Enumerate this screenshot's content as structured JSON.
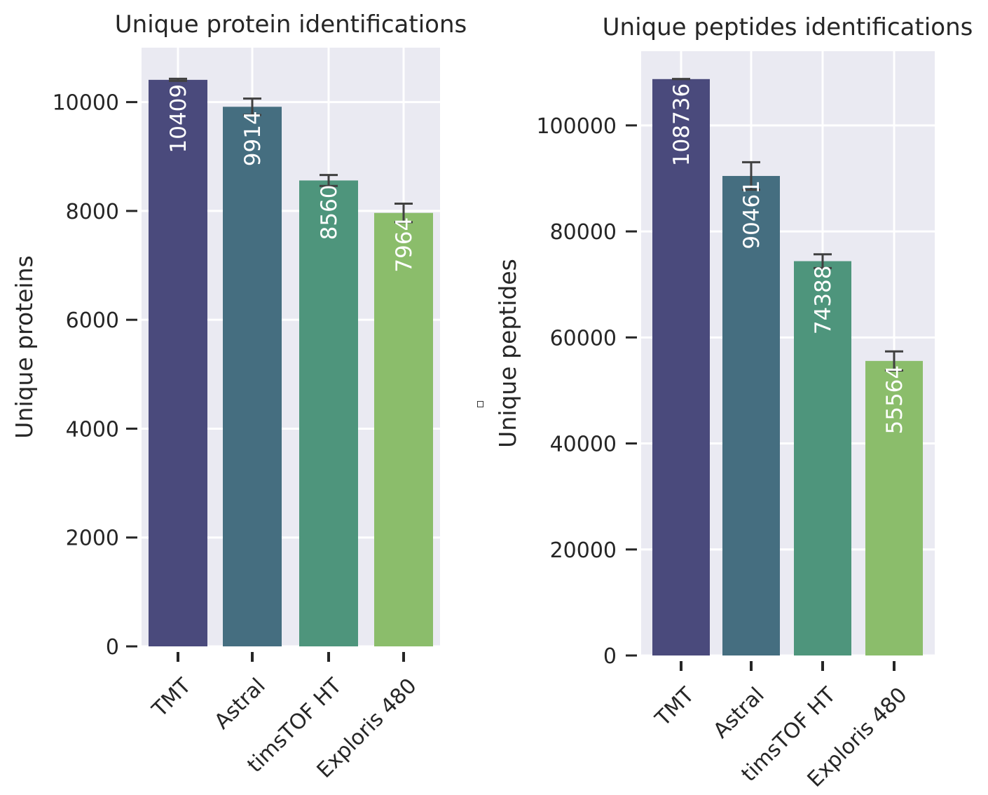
{
  "chart_data": [
    {
      "type": "bar",
      "title": "Unique protein identifications",
      "xlabel": "",
      "ylabel": "Unique proteins",
      "categories": [
        "TMT",
        "Astral",
        "timsTOF HT",
        "Exploris 480"
      ],
      "values": [
        10409,
        9914,
        8560,
        7964
      ],
      "value_labels": [
        "10409",
        "9914",
        "8560",
        "7964"
      ],
      "error": [
        20,
        150,
        100,
        170
      ],
      "colors": [
        "#4a4a7c",
        "#456e80",
        "#4e957c",
        "#8bbd6b"
      ],
      "ylim": [
        0,
        11000
      ],
      "yticks": [
        0,
        2000,
        4000,
        6000,
        8000,
        10000
      ],
      "grid": true,
      "background": "#eaeaf2"
    },
    {
      "type": "bar",
      "title": "Unique peptides identifications",
      "xlabel": "",
      "ylabel": "Unique peptides",
      "categories": [
        "TMT",
        "Astral",
        "timsTOF HT",
        "Exploris 480"
      ],
      "values": [
        108736,
        90461,
        74388,
        55564
      ],
      "value_labels": [
        "108736",
        "90461",
        "74388",
        "55564"
      ],
      "error": [
        0,
        2600,
        1300,
        1800
      ],
      "colors": [
        "#4a4a7c",
        "#456e80",
        "#4e957c",
        "#8bbd6b"
      ],
      "ylim": [
        0,
        114000
      ],
      "yticks": [
        0,
        20000,
        40000,
        60000,
        80000,
        100000
      ],
      "grid": true,
      "background": "#eaeaf2"
    }
  ]
}
